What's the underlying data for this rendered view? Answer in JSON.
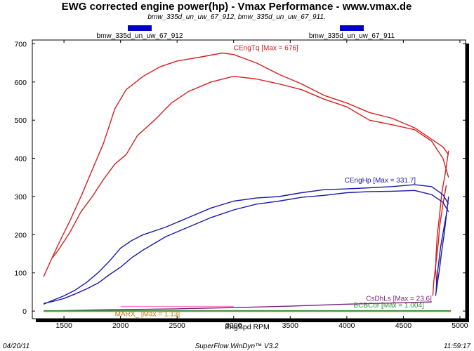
{
  "header": {
    "title": "EWG corrected engine power(hp) - Vmax Performance - www.vmax.de",
    "subtitle": "bmw_335d_un_uw_67_912, bmw_335d_un_uw_67_911,"
  },
  "legend": [
    {
      "name": "bmw_335d_un_uw_67_912",
      "color": "#0000cc"
    },
    {
      "name": "bmw_335d_un_uw_67_911",
      "color": "#0000cc"
    }
  ],
  "footer": {
    "date": "04/20/11",
    "software": "SuperFlow WinDyn™ V3.2",
    "time": "11:59:17"
  },
  "chart_data": {
    "type": "line",
    "xlabel": "EngSpd RPM",
    "ylabel": "",
    "xlim": [
      1220,
      5050
    ],
    "ylim": [
      -20,
      710
    ],
    "x_ticks": [
      1500,
      2000,
      2500,
      3000,
      3500,
      4000,
      4500,
      5000
    ],
    "y_ticks": [
      0,
      100,
      200,
      300,
      400,
      500,
      600,
      700
    ],
    "grid": false,
    "annotations": [
      {
        "text": "CEngTq [Max = 676]",
        "x": 3000,
        "y": 683,
        "color": "#cc2222"
      },
      {
        "text": "CEngHp [Max = 331.7]",
        "x": 3980,
        "y": 337,
        "color": "#1a1aaa"
      },
      {
        "text": "CsDhLs [Max = 23.6]",
        "x": 4170,
        "y": 27,
        "color": "#7a1f7a"
      },
      {
        "text": "BCBCor [Max = 1.004]",
        "x": 4060,
        "y": 9,
        "color": "#3a8a3a"
      },
      {
        "text": "MARX_ [Max = 1.13]",
        "x": 1950,
        "y": -14,
        "color": "#c07a10"
      }
    ],
    "series": [
      {
        "color": "#d42020",
        "points": [
          [
            1320,
            90
          ],
          [
            1380,
            130
          ],
          [
            1450,
            175
          ],
          [
            1550,
            235
          ],
          [
            1650,
            300
          ],
          [
            1750,
            370
          ],
          [
            1850,
            440
          ],
          [
            1950,
            530
          ],
          [
            2050,
            580
          ],
          [
            2200,
            615
          ],
          [
            2350,
            640
          ],
          [
            2500,
            655
          ],
          [
            2700,
            665
          ],
          [
            2900,
            676
          ],
          [
            3000,
            672
          ],
          [
            3200,
            650
          ],
          [
            3400,
            620
          ],
          [
            3600,
            595
          ],
          [
            3800,
            565
          ],
          [
            4000,
            545
          ],
          [
            4200,
            520
          ],
          [
            4400,
            505
          ],
          [
            4600,
            480
          ],
          [
            4750,
            450
          ],
          [
            4850,
            430
          ],
          [
            4900,
            410
          ]
        ]
      },
      {
        "color": "#d42020",
        "points": [
          [
            1400,
            140
          ],
          [
            1450,
            160
          ],
          [
            1550,
            205
          ],
          [
            1650,
            260
          ],
          [
            1750,
            300
          ],
          [
            1850,
            345
          ],
          [
            1950,
            385
          ],
          [
            2050,
            410
          ],
          [
            2150,
            460
          ],
          [
            2300,
            500
          ],
          [
            2450,
            545
          ],
          [
            2600,
            575
          ],
          [
            2800,
            600
          ],
          [
            3000,
            615
          ],
          [
            3200,
            608
          ],
          [
            3400,
            595
          ],
          [
            3600,
            580
          ],
          [
            3800,
            555
          ],
          [
            4000,
            535
          ],
          [
            4200,
            500
          ],
          [
            4400,
            488
          ],
          [
            4600,
            475
          ],
          [
            4750,
            445
          ],
          [
            4850,
            400
          ],
          [
            4900,
            350
          ]
        ]
      },
      {
        "color": "#d42020",
        "points": [
          [
            4900,
            420
          ],
          [
            4870,
            360
          ],
          [
            4840,
            310
          ],
          [
            4820,
            250
          ],
          [
            4800,
            200
          ],
          [
            4790,
            150
          ],
          [
            4785,
            110
          ],
          [
            4795,
            70
          ]
        ]
      },
      {
        "color": "#d42020",
        "points": [
          [
            4880,
            330
          ],
          [
            4850,
            280
          ],
          [
            4820,
            220
          ],
          [
            4810,
            180
          ],
          [
            4790,
            130
          ],
          [
            4770,
            80
          ],
          [
            4760,
            40
          ]
        ]
      },
      {
        "color": "#1a1aaa",
        "points": [
          [
            1320,
            18
          ],
          [
            1400,
            28
          ],
          [
            1500,
            40
          ],
          [
            1600,
            55
          ],
          [
            1700,
            75
          ],
          [
            1800,
            100
          ],
          [
            1900,
            130
          ],
          [
            2000,
            165
          ],
          [
            2100,
            185
          ],
          [
            2200,
            200
          ],
          [
            2400,
            220
          ],
          [
            2600,
            245
          ],
          [
            2800,
            270
          ],
          [
            3000,
            288
          ],
          [
            3200,
            296
          ],
          [
            3400,
            300
          ],
          [
            3600,
            310
          ],
          [
            3800,
            318
          ],
          [
            4000,
            320
          ],
          [
            4200,
            323
          ],
          [
            4400,
            326
          ],
          [
            4600,
            331
          ],
          [
            4750,
            326
          ],
          [
            4850,
            305
          ],
          [
            4900,
            280
          ]
        ]
      },
      {
        "color": "#1a1aaa",
        "points": [
          [
            1320,
            20
          ],
          [
            1400,
            25
          ],
          [
            1500,
            33
          ],
          [
            1600,
            45
          ],
          [
            1700,
            58
          ],
          [
            1800,
            73
          ],
          [
            1900,
            95
          ],
          [
            2000,
            115
          ],
          [
            2100,
            140
          ],
          [
            2200,
            160
          ],
          [
            2400,
            195
          ],
          [
            2600,
            220
          ],
          [
            2800,
            245
          ],
          [
            3000,
            265
          ],
          [
            3200,
            280
          ],
          [
            3400,
            288
          ],
          [
            3600,
            298
          ],
          [
            3800,
            303
          ],
          [
            4000,
            310
          ],
          [
            4200,
            313
          ],
          [
            4400,
            314
          ],
          [
            4600,
            316
          ],
          [
            4750,
            305
          ],
          [
            4850,
            285
          ],
          [
            4900,
            260
          ]
        ]
      },
      {
        "color": "#1a1aaa",
        "points": [
          [
            4900,
            300
          ],
          [
            4880,
            250
          ],
          [
            4860,
            200
          ],
          [
            4840,
            160
          ],
          [
            4820,
            110
          ],
          [
            4800,
            70
          ],
          [
            4785,
            40
          ]
        ]
      },
      {
        "color": "#1a1aaa",
        "points": [
          [
            4890,
            270
          ],
          [
            4860,
            220
          ],
          [
            4830,
            170
          ],
          [
            4810,
            120
          ],
          [
            4795,
            80
          ],
          [
            4790,
            50
          ]
        ]
      },
      {
        "color": "#7a1f7a",
        "points": [
          [
            1320,
            0
          ],
          [
            1800,
            3
          ],
          [
            2500,
            6
          ],
          [
            3000,
            9
          ],
          [
            3500,
            13
          ],
          [
            4000,
            18
          ],
          [
            4500,
            22
          ],
          [
            4750,
            24
          ]
        ]
      },
      {
        "color": "#3a8a3a",
        "points": [
          [
            1320,
            1
          ],
          [
            4920,
            1
          ]
        ]
      },
      {
        "color": "#c07a10",
        "points": [
          [
            1320,
            -1
          ],
          [
            4920,
            -1
          ]
        ]
      },
      {
        "color": "#ff80c0",
        "points": [
          [
            2000,
            12
          ],
          [
            3000,
            12
          ]
        ]
      }
    ]
  }
}
